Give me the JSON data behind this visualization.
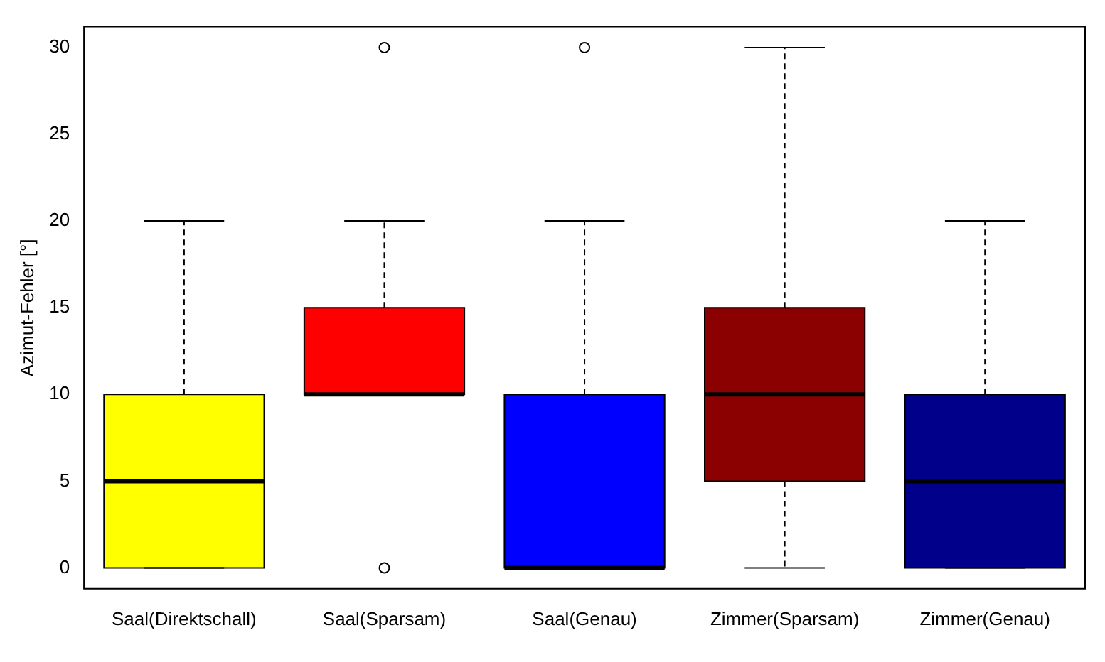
{
  "chart_data": {
    "type": "box",
    "ylabel": "Azimut-Fehler [°]",
    "categories": [
      "Saal(Direktschall)",
      "Saal(Sparsam)",
      "Saal(Genau)",
      "Zimmer(Sparsam)",
      "Zimmer(Genau)"
    ],
    "colors": [
      "#ffff00",
      "#ff0000",
      "#0000ff",
      "#8b0000",
      "#00008b"
    ],
    "boxes": [
      {
        "low": 0,
        "q1": 0,
        "median": 5,
        "q3": 10,
        "high": 20
      },
      {
        "low": 10,
        "q1": 10,
        "median": 10,
        "q3": 15,
        "high": 20,
        "outliers": [
          30,
          0
        ]
      },
      {
        "low": 0,
        "q1": 0,
        "median": 0,
        "q3": 10,
        "high": 20,
        "outliers": [
          30
        ]
      },
      {
        "low": 0,
        "q1": 5,
        "median": 10,
        "q3": 15,
        "high": 30
      },
      {
        "low": 0,
        "q1": 0,
        "median": 5,
        "q3": 10,
        "high": 20
      }
    ],
    "ylim": [
      -1.2,
      31.2
    ],
    "yticks": [
      0,
      5,
      10,
      15,
      20,
      25,
      30
    ],
    "grid": false
  }
}
